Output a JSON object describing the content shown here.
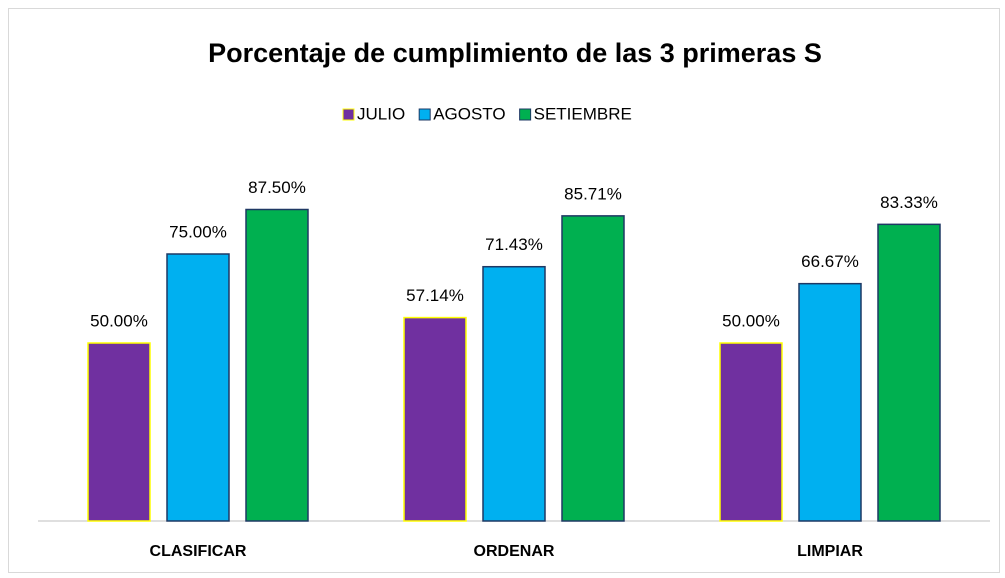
{
  "chart_data": {
    "type": "bar",
    "title": "Porcentaje de cumplimiento de las 3 primeras S",
    "categories": [
      "CLASIFICAR",
      "ORDENAR",
      "LIMPIAR"
    ],
    "series": [
      {
        "name": "JULIO",
        "color": "#7030a0",
        "edgecolor": "#ffff00",
        "values": [
          50,
          57.14,
          50
        ],
        "value_labels": [
          "50.00%",
          "57.14%",
          "50.00%"
        ]
      },
      {
        "name": "AGOSTO",
        "color": "#00b0f0",
        "edgecolor": "#1f3864",
        "values": [
          75,
          71.43,
          66.67
        ],
        "value_labels": [
          "75.00%",
          "71.43%",
          "66.67%"
        ]
      },
      {
        "name": "SETIEMBRE",
        "color": "#00b050",
        "edgecolor": "#1f3864",
        "values": [
          87.5,
          85.71,
          83.33
        ],
        "value_labels": [
          "87.50%",
          "85.71%",
          "83.33%"
        ]
      }
    ],
    "legend": "top"
  }
}
